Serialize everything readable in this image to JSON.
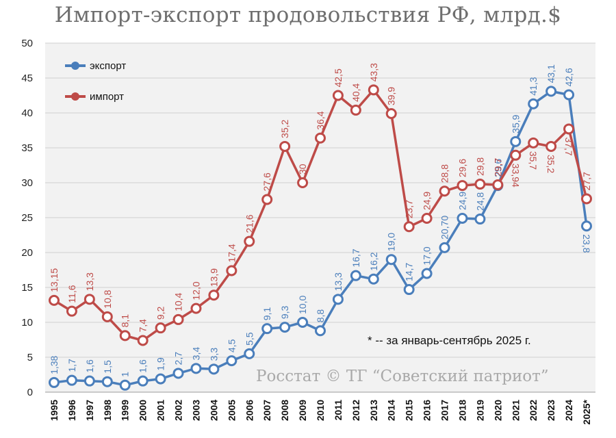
{
  "title": "Импорт-экспорт продовольствия РФ, млрд.$",
  "note": "* -- за январь-сентябрь 2025 г.",
  "credit": "Росстат © ТГ “Советский патриот”",
  "colors": {
    "export": "#4a7ebb",
    "import": "#be4b48",
    "grid": "#d0d0d0",
    "plot_bg": "#f2f2f2"
  },
  "chart_data": {
    "type": "line",
    "title": "Импорт-экспорт продовольствия РФ, млрд.$",
    "xlabel": "",
    "ylabel": "",
    "ylim": [
      0,
      50
    ],
    "yticks": [
      0,
      5,
      10,
      15,
      20,
      25,
      30,
      35,
      40,
      45,
      50
    ],
    "legend_position": "top-left",
    "categories": [
      "1995",
      "1996",
      "1997",
      "1998",
      "1999",
      "2000",
      "2001",
      "2002",
      "2003",
      "2004",
      "2005",
      "2006",
      "2007",
      "2008",
      "2009",
      "2010",
      "2011",
      "2012",
      "2013",
      "2014",
      "2015",
      "2016",
      "2017",
      "2018",
      "2019",
      "2020",
      "2021",
      "2022",
      "2023",
      "2024",
      "2025*"
    ],
    "series": [
      {
        "name": "экспорт",
        "key": "export",
        "values": [
          1.38,
          1.7,
          1.6,
          1.5,
          1.0,
          1.6,
          1.9,
          2.7,
          3.4,
          3.3,
          4.5,
          5.5,
          9.1,
          9.3,
          10.0,
          8.8,
          13.3,
          16.7,
          16.2,
          19.0,
          14.7,
          17.0,
          20.7,
          24.9,
          24.8,
          29.6,
          35.9,
          41.3,
          43.1,
          42.6,
          23.8
        ],
        "labels": [
          "1,38",
          "1,7",
          "1,6",
          "1,5",
          "1",
          "1,6",
          "1,9",
          "2,7",
          "3,4",
          "3,3",
          "4,5",
          "5,5",
          "9,1",
          "9,3",
          "10,0",
          "8,8",
          "13,3",
          "16,7",
          "16,2",
          "19,0",
          "14,7",
          "17,0",
          "20,70",
          "24,9",
          "24,8",
          "29,6",
          "35,9",
          "41,3",
          "43,1",
          "42,6",
          "23,8"
        ]
      },
      {
        "name": "импорт",
        "key": "import",
        "values": [
          13.15,
          11.6,
          13.3,
          10.8,
          8.1,
          7.4,
          9.2,
          10.4,
          12.0,
          13.9,
          17.4,
          21.6,
          27.6,
          35.2,
          30.0,
          36.4,
          42.5,
          40.4,
          43.3,
          39.9,
          23.7,
          24.9,
          28.8,
          29.6,
          29.8,
          29.7,
          33.94,
          35.7,
          35.2,
          37.7,
          27.7
        ],
        "labels": [
          "13,15",
          "11,6",
          "13,3",
          "10,8",
          "8,1",
          "7,4",
          "9,2",
          "10,4",
          "12,0",
          "13,9",
          "17,4",
          "21,6",
          "27,6",
          "35,2",
          "30",
          "36,4",
          "42,5",
          "40,4",
          "43,3",
          "39,9",
          "23,7",
          "24,9",
          "28,8",
          "29,6",
          "29,8",
          "29,7",
          "33,94",
          "35,7",
          "35,2",
          "37,7",
          "27,7"
        ]
      }
    ]
  }
}
